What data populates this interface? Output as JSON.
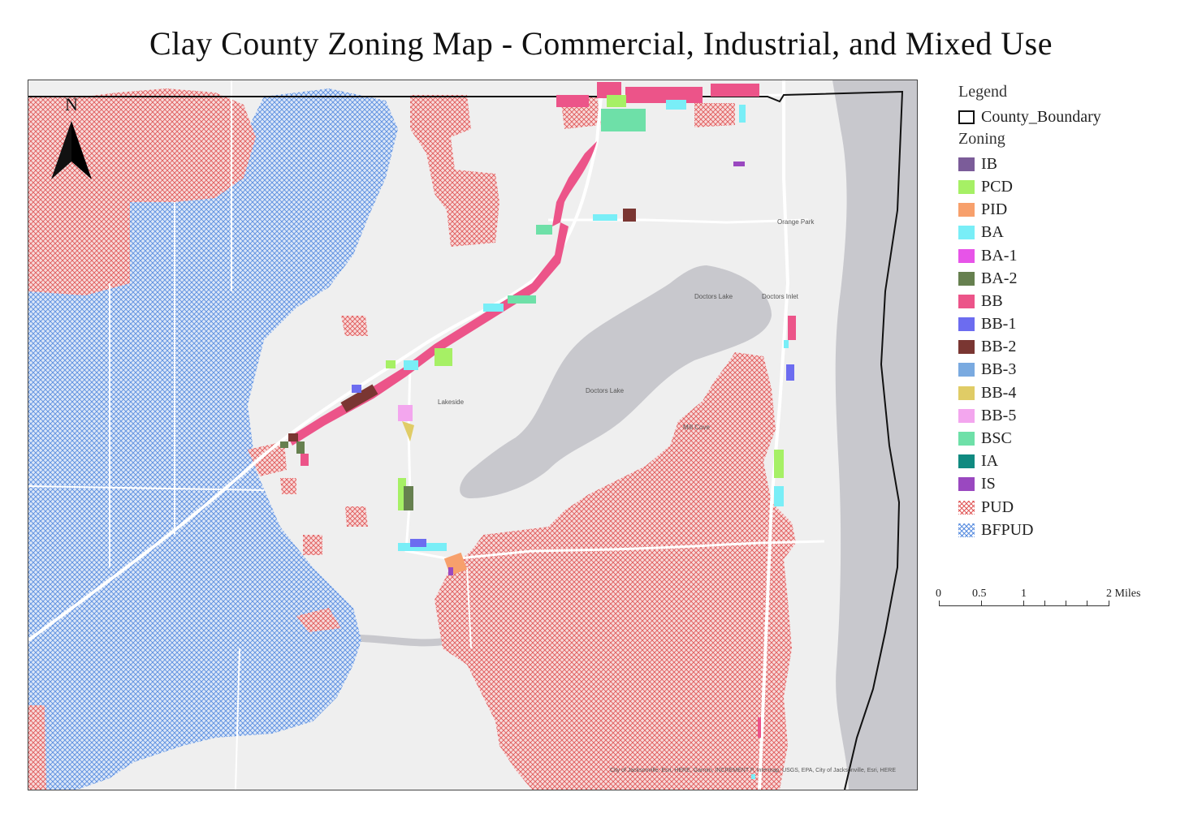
{
  "title": "Clay County Zoning Map -  Commercial, Industrial, and Mixed Use",
  "north_label": "N",
  "legend": {
    "heading": "Legend",
    "boundary_label": "County_Boundary",
    "zoning_heading": "Zoning",
    "items": [
      {
        "label": "IB",
        "color": "#7b5c99"
      },
      {
        "label": "PCD",
        "color": "#a6f065"
      },
      {
        "label": "PID",
        "color": "#f7a06c"
      },
      {
        "label": "BA",
        "color": "#79eef7"
      },
      {
        "label": "BA-1",
        "color": "#e754e8"
      },
      {
        "label": "BA-2",
        "color": "#66804f"
      },
      {
        "label": "BB",
        "color": "#ec5489"
      },
      {
        "label": "BB-1",
        "color": "#6c6cf0"
      },
      {
        "label": "BB-2",
        "color": "#7a3632"
      },
      {
        "label": "BB-3",
        "color": "#7aaae0"
      },
      {
        "label": "BB-4",
        "color": "#e0cc66"
      },
      {
        "label": "BB-5",
        "color": "#f3a6ee"
      },
      {
        "label": "BSC",
        "color": "#6ee0a8"
      },
      {
        "label": "IA",
        "color": "#108a80"
      },
      {
        "label": "IS",
        "color": "#9a48c0"
      },
      {
        "label": "PUD",
        "color": "#e05a5a",
        "pattern": "crosshatch"
      },
      {
        "label": "BFPUD",
        "color": "#5a8ee0",
        "pattern": "crosshatch"
      }
    ]
  },
  "scale": {
    "labels": [
      "0",
      "0.5",
      "1",
      "2 Miles"
    ]
  },
  "places": {
    "orange_park": "Orange Park",
    "doctors_lake": "Doctors Lake",
    "doctors_lake_2": "Doctors Lake",
    "doctors_inlet": "Doctors Inlet",
    "lakeside": "Lakeside",
    "mill_cove": "Mill Cove"
  },
  "attribution": "City of Jacksonville, Esri, HERE, Garmin, INCREMENT P, Intermap, USGS, EPA, City of Jacksonville, Esri, HERE"
}
